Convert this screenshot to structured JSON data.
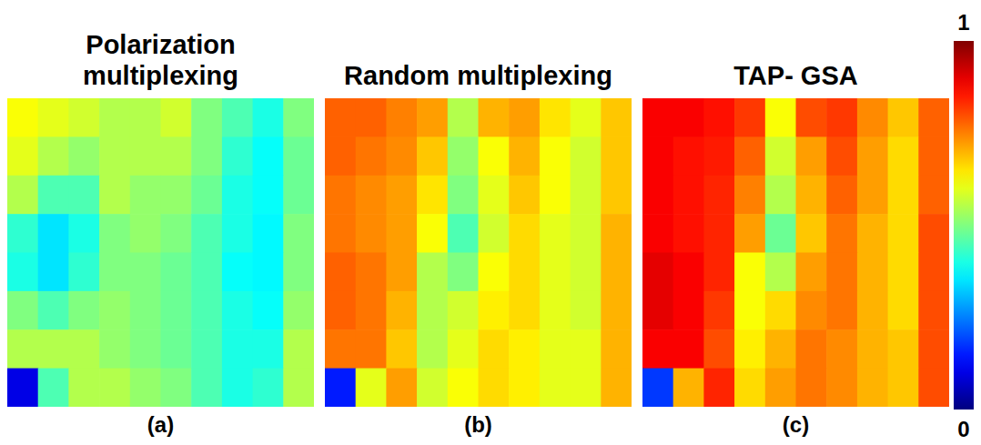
{
  "chart_data": {
    "type": "heatmap",
    "panels": [
      {
        "label": "(a)",
        "title": "Polarization multiplexing",
        "cells": [
          [
            0.62,
            0.6,
            0.58,
            0.55,
            0.55,
            0.58,
            0.5,
            0.45,
            0.4,
            0.5
          ],
          [
            0.6,
            0.55,
            0.52,
            0.55,
            0.55,
            0.55,
            0.5,
            0.42,
            0.38,
            0.48
          ],
          [
            0.55,
            0.45,
            0.45,
            0.55,
            0.52,
            0.52,
            0.48,
            0.4,
            0.38,
            0.48
          ],
          [
            0.42,
            0.35,
            0.4,
            0.5,
            0.52,
            0.5,
            0.45,
            0.4,
            0.37,
            0.5
          ],
          [
            0.4,
            0.35,
            0.42,
            0.5,
            0.5,
            0.48,
            0.45,
            0.38,
            0.37,
            0.5
          ],
          [
            0.5,
            0.45,
            0.5,
            0.52,
            0.5,
            0.48,
            0.45,
            0.4,
            0.38,
            0.52
          ],
          [
            0.55,
            0.55,
            0.55,
            0.52,
            0.5,
            0.48,
            0.45,
            0.4,
            0.4,
            0.55
          ],
          [
            0.1,
            0.45,
            0.55,
            0.55,
            0.52,
            0.5,
            0.45,
            0.4,
            0.42,
            0.55
          ]
        ]
      },
      {
        "label": "(b)",
        "title": "Random multiplexing",
        "cells": [
          [
            0.78,
            0.78,
            0.75,
            0.72,
            0.55,
            0.7,
            0.72,
            0.65,
            0.6,
            0.68
          ],
          [
            0.78,
            0.76,
            0.74,
            0.68,
            0.52,
            0.62,
            0.7,
            0.62,
            0.58,
            0.68
          ],
          [
            0.76,
            0.74,
            0.72,
            0.65,
            0.5,
            0.6,
            0.68,
            0.62,
            0.58,
            0.68
          ],
          [
            0.76,
            0.74,
            0.72,
            0.62,
            0.45,
            0.58,
            0.66,
            0.6,
            0.58,
            0.7
          ],
          [
            0.78,
            0.76,
            0.72,
            0.55,
            0.5,
            0.62,
            0.66,
            0.6,
            0.58,
            0.7
          ],
          [
            0.78,
            0.76,
            0.7,
            0.55,
            0.58,
            0.64,
            0.66,
            0.6,
            0.58,
            0.7
          ],
          [
            0.76,
            0.76,
            0.68,
            0.55,
            0.6,
            0.66,
            0.64,
            0.6,
            0.6,
            0.7
          ],
          [
            0.15,
            0.6,
            0.72,
            0.58,
            0.62,
            0.66,
            0.64,
            0.6,
            0.6,
            0.7
          ]
        ]
      },
      {
        "label": "(c)",
        "title": "TAP- GSA",
        "cells": [
          [
            0.88,
            0.88,
            0.86,
            0.82,
            0.62,
            0.8,
            0.82,
            0.74,
            0.68,
            0.78
          ],
          [
            0.88,
            0.86,
            0.85,
            0.78,
            0.58,
            0.72,
            0.8,
            0.72,
            0.66,
            0.78
          ],
          [
            0.88,
            0.86,
            0.84,
            0.75,
            0.55,
            0.7,
            0.78,
            0.72,
            0.66,
            0.78
          ],
          [
            0.88,
            0.86,
            0.84,
            0.72,
            0.48,
            0.68,
            0.76,
            0.7,
            0.66,
            0.8
          ],
          [
            0.9,
            0.88,
            0.84,
            0.62,
            0.55,
            0.72,
            0.76,
            0.7,
            0.66,
            0.8
          ],
          [
            0.9,
            0.88,
            0.82,
            0.62,
            0.66,
            0.74,
            0.76,
            0.7,
            0.66,
            0.8
          ],
          [
            0.88,
            0.88,
            0.8,
            0.64,
            0.7,
            0.76,
            0.74,
            0.7,
            0.68,
            0.8
          ],
          [
            0.18,
            0.7,
            0.84,
            0.66,
            0.72,
            0.76,
            0.74,
            0.7,
            0.68,
            0.8
          ]
        ]
      }
    ],
    "colorbar_lim": [
      0,
      1
    ],
    "colorbar_ticks": [
      0,
      1
    ]
  }
}
